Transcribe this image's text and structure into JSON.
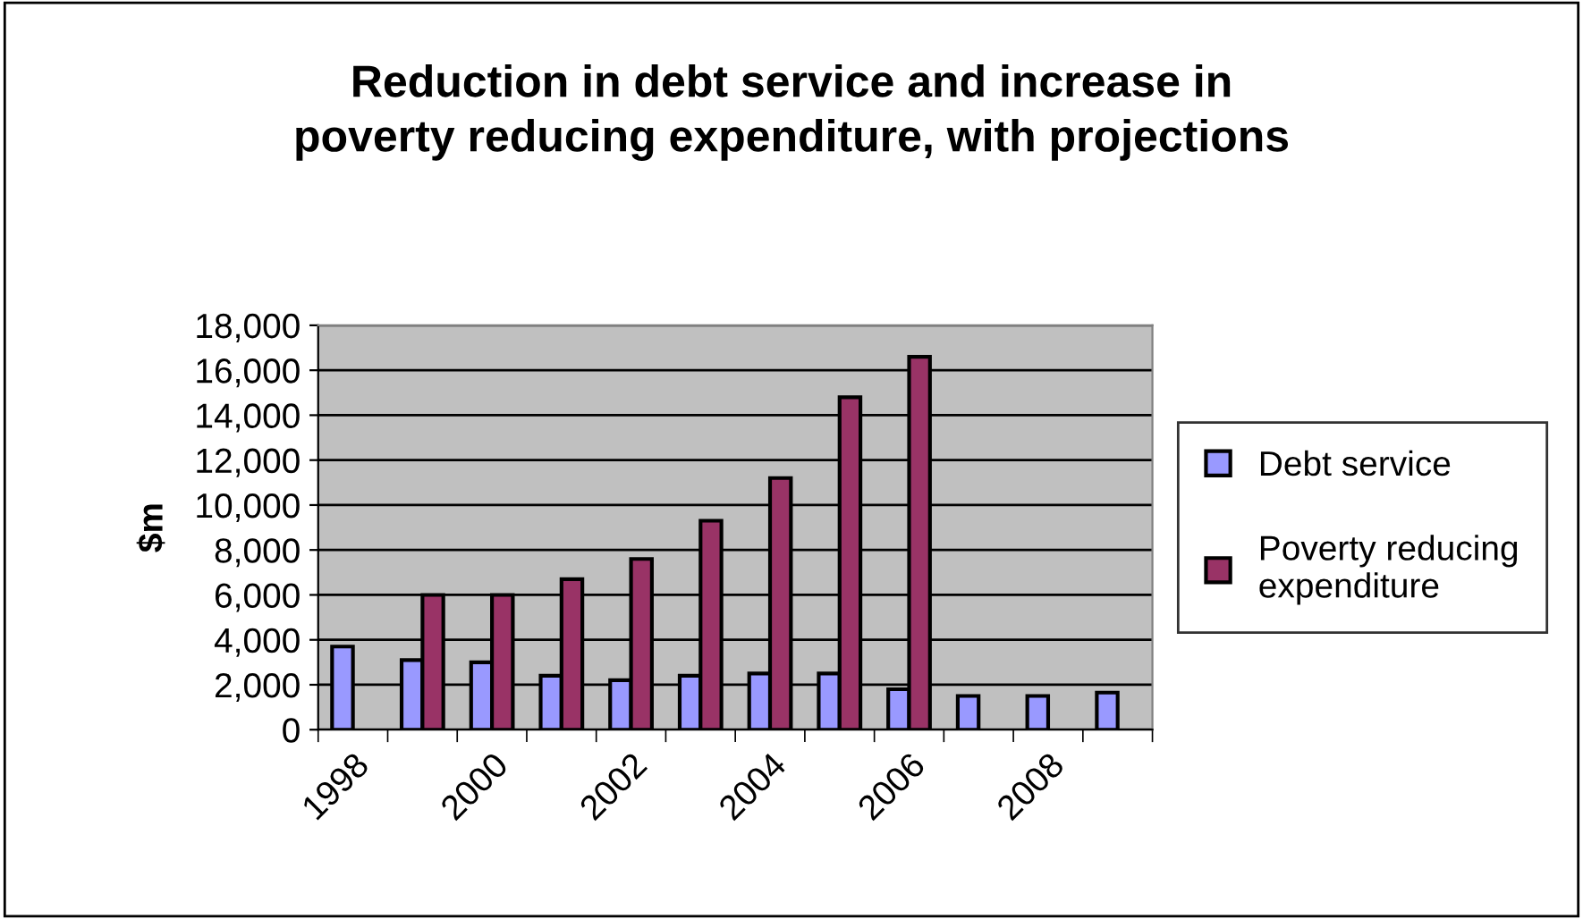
{
  "chart_data": {
    "type": "bar",
    "title": "Reduction in debt service and increase in\npoverty reducing expenditure, with projections",
    "ylabel": "$m",
    "categories": [
      "1998",
      null,
      "2000",
      null,
      "2002",
      null,
      "2004",
      null,
      "2006",
      null,
      "2008",
      null
    ],
    "series": [
      {
        "name": "Debt service",
        "color": "#9999ff",
        "values": [
          3700,
          3100,
          3000,
          2400,
          2200,
          2400,
          2500,
          2500,
          1800,
          1500,
          1500,
          1650
        ]
      },
      {
        "name": "Poverty reducing\nexpenditure",
        "color": "#993366",
        "values": [
          null,
          6000,
          6000,
          6700,
          7600,
          9300,
          11200,
          14800,
          16600,
          null,
          null,
          null
        ]
      }
    ],
    "ylim": [
      0,
      18000
    ],
    "yticks": [
      {
        "value": 0,
        "label": "0"
      },
      {
        "value": 2000,
        "label": "2,000"
      },
      {
        "value": 4000,
        "label": "4,000"
      },
      {
        "value": 6000,
        "label": "6,000"
      },
      {
        "value": 8000,
        "label": "8,000"
      },
      {
        "value": 10000,
        "label": "10,000"
      },
      {
        "value": 12000,
        "label": "12,000"
      },
      {
        "value": 14000,
        "label": "14,000"
      },
      {
        "value": 16000,
        "label": "16,000"
      },
      {
        "value": 18000,
        "label": "18,000"
      }
    ],
    "grid": "y",
    "legend": "right"
  }
}
